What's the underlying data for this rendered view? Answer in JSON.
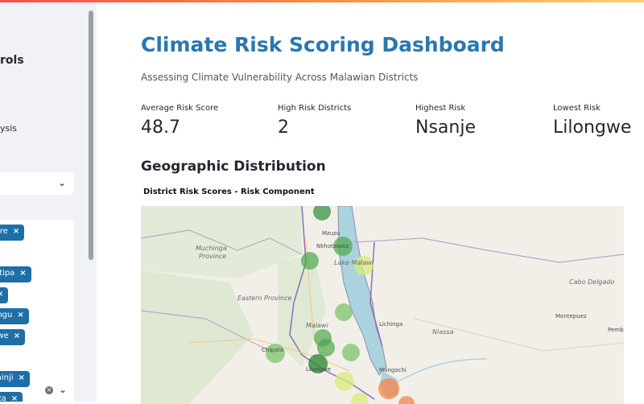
{
  "sidebar": {
    "title": "rols",
    "analysis_text": "ysis",
    "tags": [
      {
        "label": "tyre"
      },
      {
        "label": "hitipa"
      },
      {
        "label": ""
      },
      {
        "label": "ungu"
      },
      {
        "label": "gwe"
      },
      {
        "label": "chinji"
      },
      {
        "label": "nza"
      }
    ]
  },
  "header": {
    "title": "Climate Risk Scoring Dashboard",
    "subtitle": "Assessing Climate Vulnerability Across Malawian Districts"
  },
  "metrics": [
    {
      "label": "Average Risk Score",
      "value": "48.7"
    },
    {
      "label": "High Risk Districts",
      "value": "2"
    },
    {
      "label": "Highest Risk",
      "value": "Nsanje"
    },
    {
      "label": "Lowest Risk",
      "value": "Lilongwe"
    }
  ],
  "section": {
    "title": "Geographic Distribution"
  },
  "map": {
    "title": "District Risk Scores - Risk Component",
    "labels": {
      "muchinga": "Muchinga",
      "province": "Province",
      "eastern": "Eastern Province",
      "malawi": "Malawi",
      "lake_malawi": "Lake Malawi",
      "cabo": "Cabo Delgado",
      "niassa": "Niassa"
    },
    "cities": {
      "mzuzu": "Mzuzu",
      "nkhotakota": "Nkhotakota",
      "lichinga": "Lichinga",
      "chipata": "Chipata",
      "lilongwe": "Lilongwe",
      "mangochi": "Mangochi",
      "montepuez": "Montepuez",
      "pemba": "Pemba"
    },
    "colors": {
      "low": "#2e8b3a",
      "mid": "#7cc46b",
      "yellow": "#d7ec7a",
      "high": "#f28b50"
    }
  }
}
